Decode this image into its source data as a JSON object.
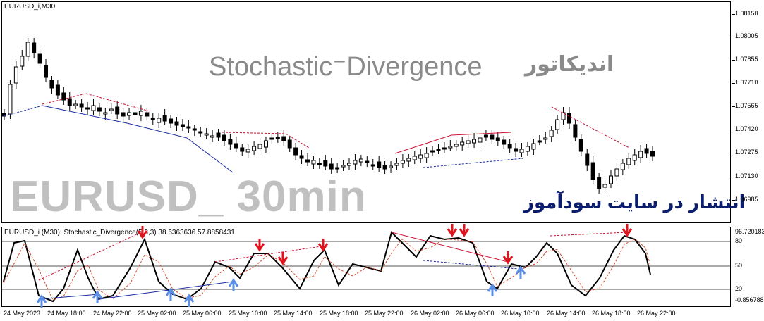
{
  "chart": {
    "symbol_label": "EURUSD_i,M30",
    "indicator_label": "EURUSD_i (M30):  Stochastic_Divergence(5,3,3) 38.6363636 57.8858431",
    "watermark_title": "Stochastic⁻Divergence",
    "watermark_fa": "اندیکاتور",
    "watermark_symbol": "EURUSD_ 30min",
    "publish_text": "انتشار در سایت سودآموز",
    "price_axis": [
      "1.08150",
      "1.08005",
      "1.07855",
      "1.07710",
      "1.07565",
      "1.07420",
      "1.07275",
      "1.07130",
      "1.06985"
    ],
    "osc_axis": [
      "96.720183",
      "80",
      "50",
      "20",
      "-0.856788"
    ],
    "time_axis": [
      "24 May 2023",
      "24 May 18:00",
      "24 May 22:00",
      "25 May 02:00",
      "25 May 06:00",
      "25 May 10:00",
      "25 May 14:00",
      "25 May 18:00",
      "25 May 22:00",
      "26 May 02:00",
      "26 May 06:00",
      "26 May 10:00",
      "26 May 14:00",
      "26 May 18:00",
      "26 May 22:00"
    ],
    "colors": {
      "divergence_bear": "#cc1133",
      "divergence_bull": "#1a2aa0",
      "arrow_down": "#e0141e",
      "arrow_up": "#5b8ee6",
      "osc_line": "#000000",
      "signal_line": "#d04a2a"
    }
  }
}
